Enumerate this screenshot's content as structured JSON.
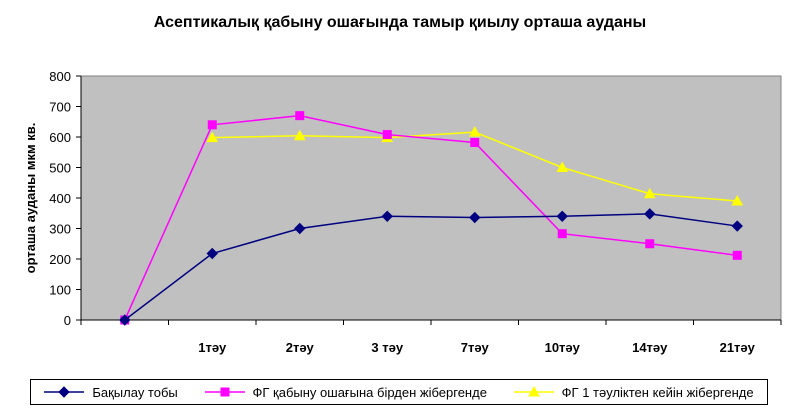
{
  "chart_data": {
    "type": "line",
    "title": "Асептикалық қабыну ошағында тамыр қиылу орташа ауданы",
    "ylabel": "орташа ауданы мкм кв.",
    "xlabel": "",
    "categories": [
      "",
      "1тәу",
      "2тәу",
      "3 тәу",
      "7тәу",
      "10тәу",
      "14тәу",
      "21тәу"
    ],
    "ylim": [
      0,
      800
    ],
    "yticks": [
      0,
      100,
      200,
      300,
      400,
      500,
      600,
      700,
      800
    ],
    "grid": false,
    "legend_position": "bottom",
    "plot_background": "#c0c0c0",
    "series": [
      {
        "name": "Бақылау тобы",
        "color": "#000080",
        "marker": "diamond",
        "values": [
          0,
          218,
          300,
          340,
          336,
          340,
          348,
          308
        ]
      },
      {
        "name": "ФГ қабыну ошағына бірден жібергенде",
        "color": "#ff00ff",
        "marker": "square",
        "values": [
          0,
          640,
          670,
          608,
          582,
          283,
          250,
          212
        ]
      },
      {
        "name": "ФГ 1 тәуліктен кейін жібергенде",
        "color": "#ffff00",
        "marker": "triangle",
        "values": [
          null,
          598,
          604,
          598,
          616,
          500,
          414,
          390
        ]
      }
    ]
  }
}
